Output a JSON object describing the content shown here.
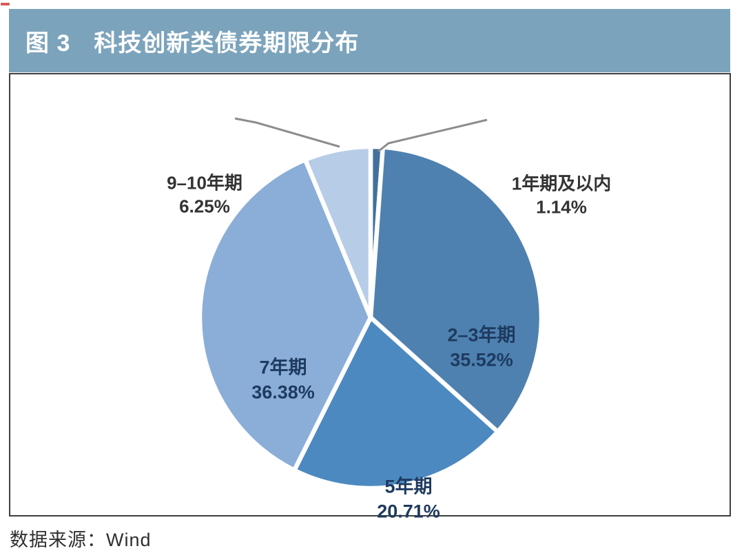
{
  "header": {
    "figure_label": "图 3",
    "title": "科技创新类债券期限分布"
  },
  "source": {
    "text": "数据来源：Wind"
  },
  "colors": {
    "header_bg": "#7CA3BC",
    "header_text": "#FFFFFF",
    "box_border": "#3F3F3F",
    "inside_label": "#1E3A5F",
    "outside_label": "#333333",
    "leader_line": "#8C8C8C",
    "corner_mark": "#D65C5C"
  },
  "chart_data": {
    "type": "pie",
    "title": "科技创新类债券期限分布",
    "start_angle": "12-oclock",
    "direction": "clockwise",
    "slice_gap_color": "#FFFFFF",
    "legend": "none",
    "slices": [
      {
        "label": "1年期及以内",
        "value": 1.14,
        "percent": "1.14%",
        "color": "#41719C",
        "label_placement": "outside-right"
      },
      {
        "label": "2–3年期",
        "value": 35.52,
        "percent": "35.52%",
        "color": "#4E81B0",
        "label_placement": "inside"
      },
      {
        "label": "5年期",
        "value": 20.71,
        "percent": "20.71%",
        "color": "#4C89C0",
        "label_placement": "inside"
      },
      {
        "label": "7年期",
        "value": 36.38,
        "percent": "36.38%",
        "color": "#8AAED8",
        "label_placement": "inside"
      },
      {
        "label": "9–10年期",
        "value": 6.25,
        "percent": "6.25%",
        "color": "#B7CCE6",
        "label_placement": "outside-left"
      }
    ]
  }
}
